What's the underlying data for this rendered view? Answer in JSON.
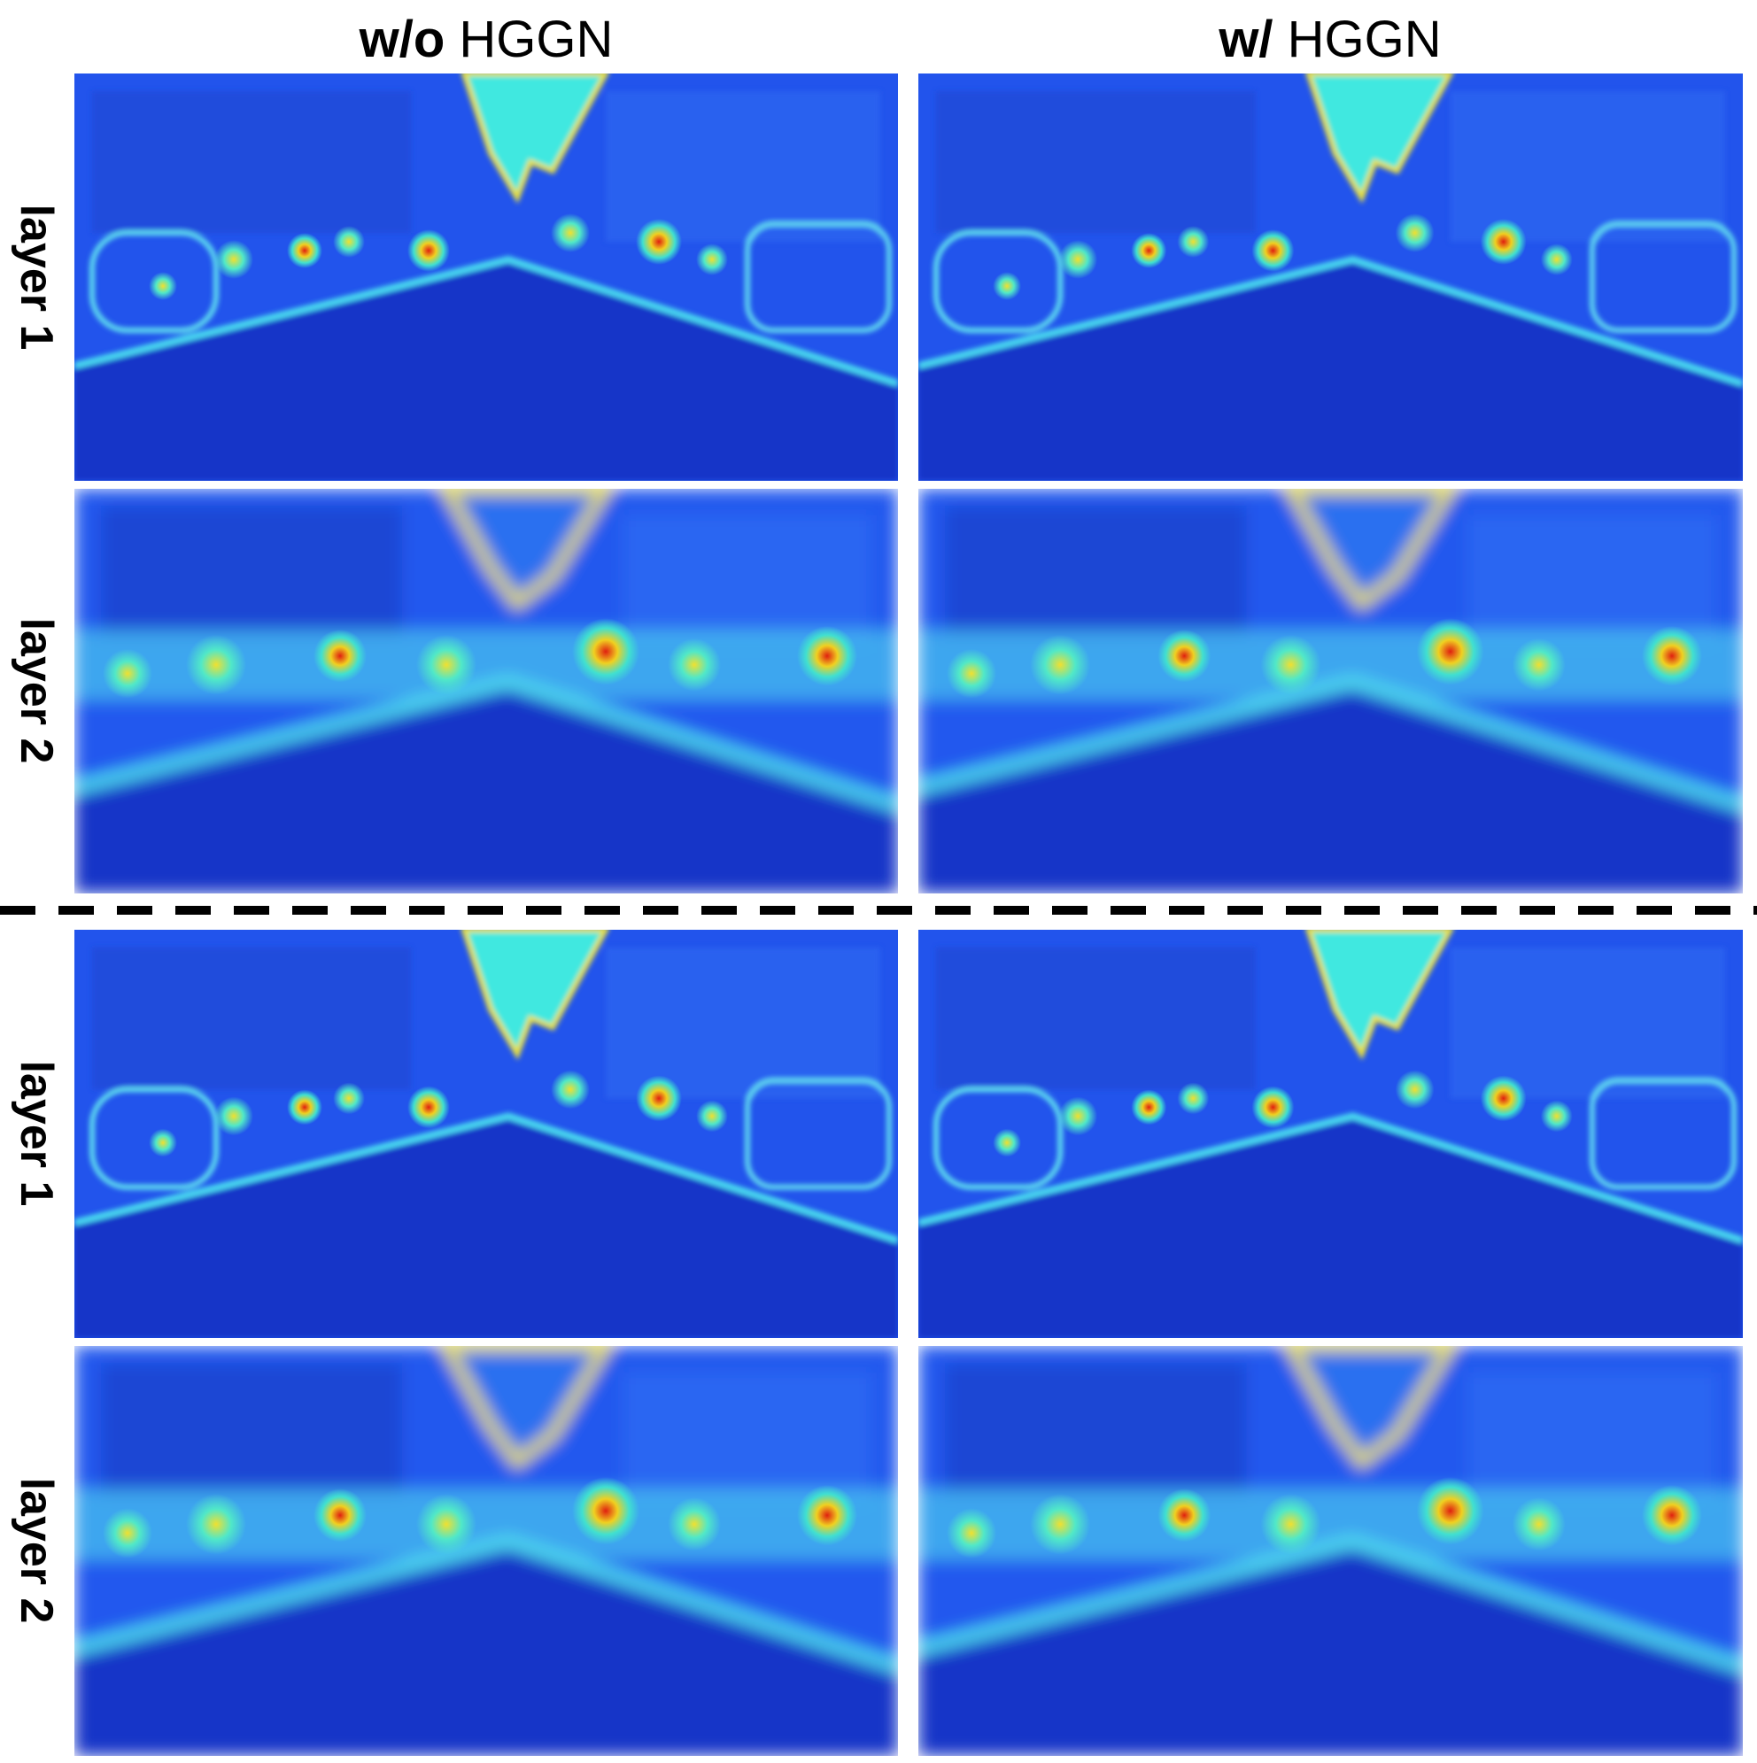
{
  "header": {
    "columns": [
      {
        "emphasis": "w/o",
        "label": "HGGN"
      },
      {
        "emphasis": "w/",
        "label": "HGGN"
      }
    ]
  },
  "rows": {
    "labels": [
      "layer 1",
      "layer 2",
      "layer 1",
      "layer 2"
    ]
  }
}
